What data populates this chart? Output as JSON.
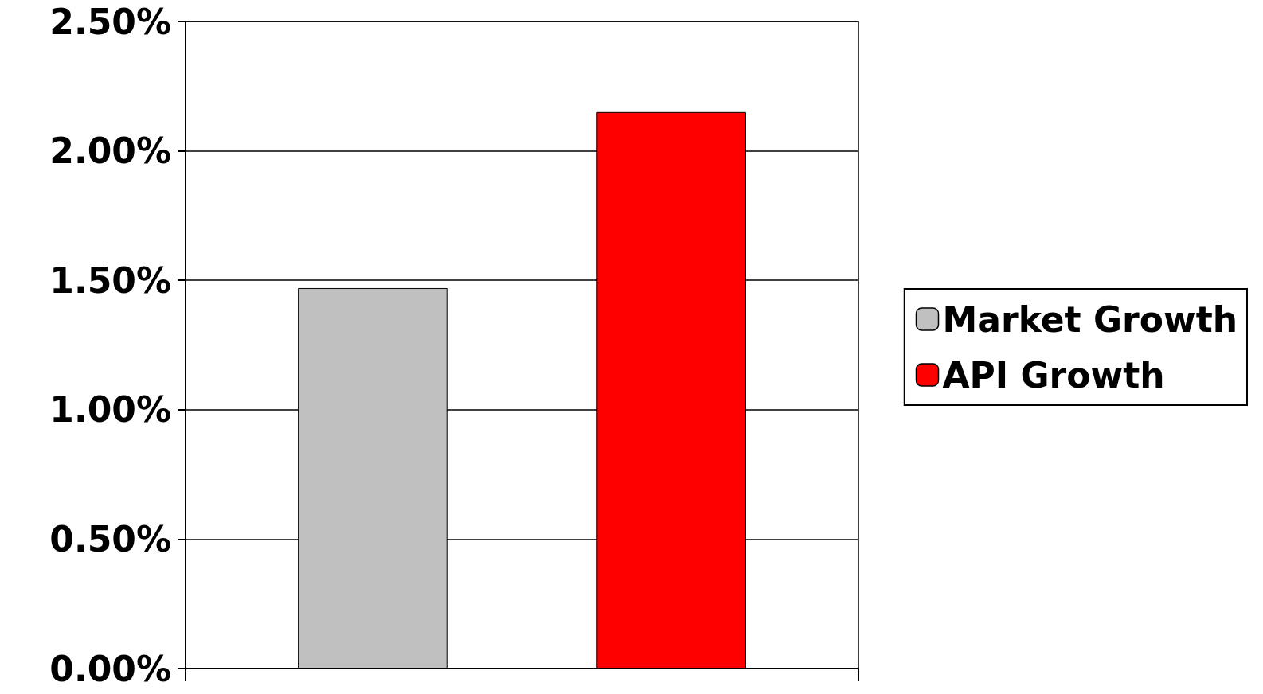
{
  "chart_data": {
    "type": "bar",
    "categories": [
      null
    ],
    "series": [
      {
        "name": "Market Growth",
        "color": "#c0c0c0",
        "values": [
          1.47
        ]
      },
      {
        "name": "API Growth",
        "color": "#ff0000",
        "values": [
          2.15
        ]
      }
    ],
    "ylim": [
      0,
      2.5
    ],
    "yticks": [
      {
        "value": 0,
        "label": "0.00%"
      },
      {
        "value": 0.5,
        "label": "0.50%"
      },
      {
        "value": 1,
        "label": "1.00%"
      },
      {
        "value": 1.5,
        "label": "1.50%"
      },
      {
        "value": 2,
        "label": "2.00%"
      },
      {
        "value": 2.5,
        "label": "2.50%"
      }
    ],
    "grid": "y",
    "legend": "right"
  }
}
